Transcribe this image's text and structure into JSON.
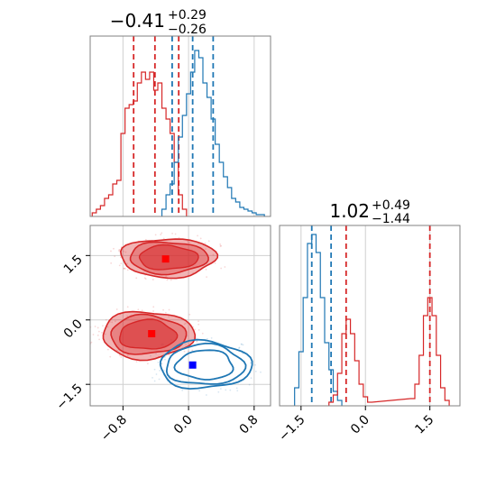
{
  "chart_data": [
    {
      "type": "histogram",
      "panel": "top-left",
      "title_main": "−0.41",
      "title_sup": "+0.29",
      "title_sub": "−0.26",
      "xlim": [
        -1.2,
        1.0
      ],
      "grid": true,
      "series": [
        {
          "color": "#d62728",
          "quantile_lines_x": [
            -0.67,
            -0.41,
            -0.12
          ],
          "bins_x": [
            -1.15,
            -1.1,
            -1.05,
            -1.0,
            -0.95,
            -0.9,
            -0.85,
            -0.8,
            -0.75,
            -0.7,
            -0.65,
            -0.6,
            -0.55,
            -0.5,
            -0.45,
            -0.4,
            -0.35,
            -0.3,
            -0.25,
            -0.2,
            -0.15,
            -0.1,
            -0.05
          ],
          "values": [
            0.02,
            0.04,
            0.06,
            0.1,
            0.12,
            0.18,
            0.2,
            0.46,
            0.6,
            0.62,
            0.64,
            0.74,
            0.8,
            0.76,
            0.8,
            0.7,
            0.74,
            0.6,
            0.54,
            0.46,
            0.3,
            0.12,
            0.04
          ]
        },
        {
          "color": "#1f77b4",
          "quantile_lines_x": [
            -0.2,
            0.05,
            0.3
          ],
          "bins_x": [
            -0.3,
            -0.25,
            -0.2,
            -0.15,
            -0.1,
            -0.05,
            0.0,
            0.05,
            0.1,
            0.15,
            0.2,
            0.25,
            0.3,
            0.35,
            0.4,
            0.45,
            0.5,
            0.55,
            0.6,
            0.65,
            0.7,
            0.75,
            0.8,
            0.85,
            0.9
          ],
          "values": [
            0.04,
            0.12,
            0.18,
            0.3,
            0.44,
            0.56,
            0.68,
            0.8,
            0.92,
            0.88,
            0.74,
            0.66,
            0.54,
            0.4,
            0.3,
            0.22,
            0.16,
            0.1,
            0.08,
            0.05,
            0.04,
            0.03,
            0.02,
            0.01,
            0.01
          ]
        }
      ]
    },
    {
      "type": "histogram",
      "panel": "bottom-right",
      "title_main": "1.02",
      "title_sup": "+0.49",
      "title_sub": "−1.44",
      "xlim": [
        -2.0,
        2.2
      ],
      "xticks": [
        "−1.5",
        "0.0",
        "1.5"
      ],
      "xtick_values": [
        -1.5,
        0.0,
        1.5
      ],
      "grid": true,
      "series": [
        {
          "color": "#1f77b4",
          "quantile_lines_x": [
            -1.25,
            -0.8
          ],
          "bins_x": [
            -1.6,
            -1.5,
            -1.4,
            -1.3,
            -1.2,
            -1.1,
            -1.0,
            -0.9,
            -0.8,
            -0.7,
            -0.6
          ],
          "values": [
            0.1,
            0.3,
            0.6,
            0.9,
            0.95,
            0.85,
            0.6,
            0.35,
            0.2,
            0.08,
            0.03
          ]
        },
        {
          "color": "#d62728",
          "quantile_lines_x": [
            -0.45,
            1.5
          ],
          "bins_x": [
            -0.8,
            -0.7,
            -0.6,
            -0.5,
            -0.4,
            -0.3,
            -0.2,
            -0.1,
            0.0,
            0.1,
            1.1,
            1.2,
            1.3,
            1.4,
            1.5,
            1.6,
            1.7,
            1.8,
            1.9
          ],
          "values": [
            0.02,
            0.06,
            0.18,
            0.4,
            0.48,
            0.4,
            0.25,
            0.12,
            0.05,
            0.02,
            0.04,
            0.12,
            0.28,
            0.5,
            0.6,
            0.5,
            0.28,
            0.1,
            0.03
          ]
        }
      ]
    },
    {
      "type": "contour",
      "panel": "bottom-left",
      "xlim": [
        -1.2,
        1.0
      ],
      "ylim": [
        -2.0,
        2.2
      ],
      "xticks": [
        "−0.8",
        "0.0",
        "0.8"
      ],
      "xtick_values": [
        -0.8,
        0.0,
        0.8
      ],
      "yticks": [
        "−1.5",
        "0.0",
        "1.5"
      ],
      "ytick_values": [
        -1.5,
        0.0,
        1.5
      ],
      "grid": true,
      "markers": [
        {
          "color": "#ff0000",
          "x": -0.28,
          "y": 1.42
        },
        {
          "color": "#ff0000",
          "x": -0.45,
          "y": -0.32
        },
        {
          "color": "#0000ff",
          "x": 0.05,
          "y": -1.05
        }
      ],
      "regions": [
        {
          "color": "#d62728",
          "filled": true,
          "cx": -0.25,
          "cy": 1.45,
          "rx": 0.58,
          "ry": 0.45
        },
        {
          "color": "#d62728",
          "filled": true,
          "cx": -0.5,
          "cy": -0.35,
          "rx": 0.56,
          "ry": 0.55
        },
        {
          "color": "#1f77b4",
          "filled": false,
          "cx": 0.2,
          "cy": -1.05,
          "rx": 0.56,
          "ry": 0.55
        }
      ]
    }
  ]
}
